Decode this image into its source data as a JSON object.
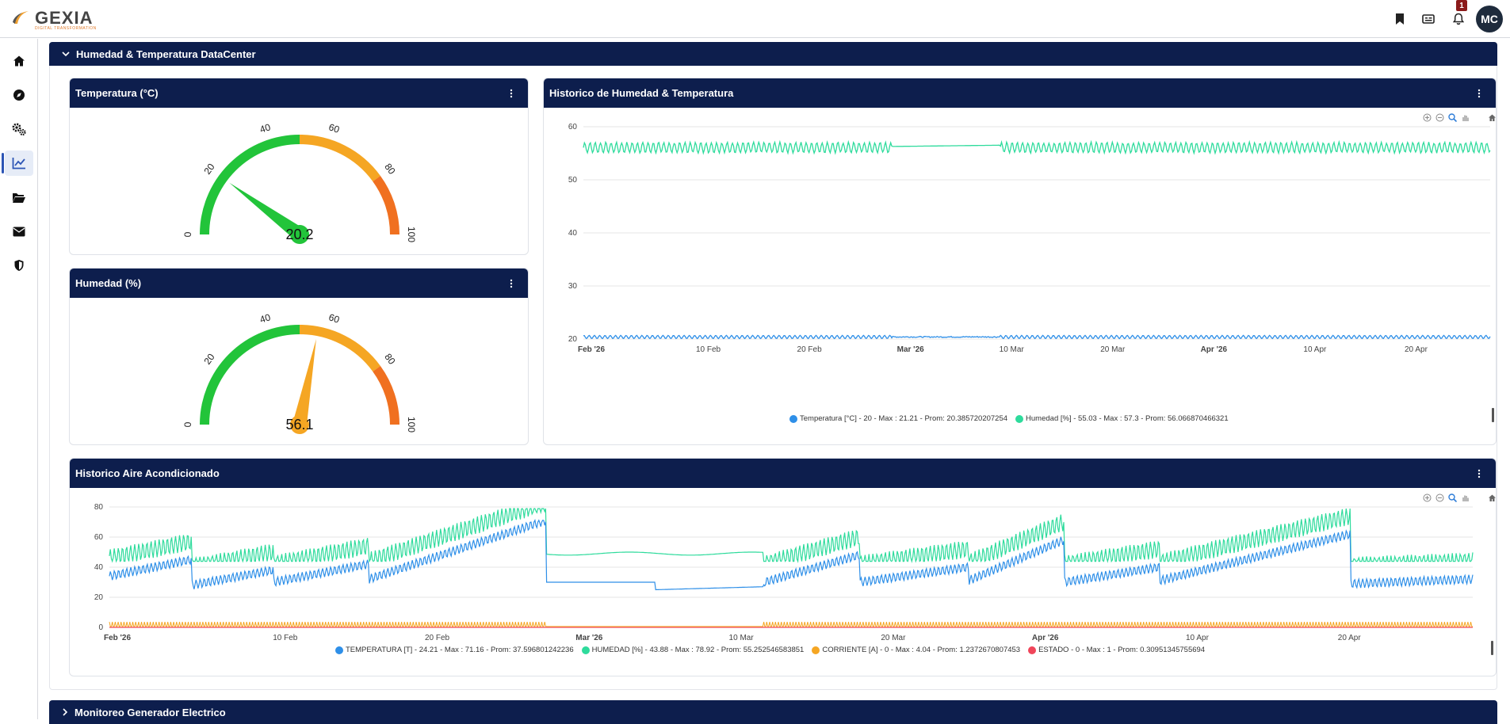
{
  "app": {
    "logo_text": "GEXIA",
    "logo_sub": "DIGITAL TRANSFORMATION",
    "notification_count": "1",
    "avatar_initials": "MC"
  },
  "sidebar": {
    "items": [
      {
        "icon": "home-icon"
      },
      {
        "icon": "compass-icon"
      },
      {
        "icon": "gears-icon"
      },
      {
        "icon": "chart-line-icon",
        "active": true
      },
      {
        "icon": "folder-open-icon"
      },
      {
        "icon": "envelope-icon"
      },
      {
        "icon": "shield-icon"
      }
    ]
  },
  "sections": {
    "datacenter_title": "Humedad & Temperatura DataCenter",
    "generator_title": "Monitoreo Generador Electrico"
  },
  "gauge_temp": {
    "title": "Temperatura (°C)",
    "value": 20.2,
    "value_label": "20.2",
    "min": 0,
    "max": 100,
    "ticks": [
      "0",
      "20",
      "40",
      "60",
      "80",
      "100"
    ],
    "needle_color": "#22c43a"
  },
  "gauge_hum": {
    "title": "Humedad (%)",
    "value": 56.1,
    "value_label": "56.1",
    "min": 0,
    "max": 100,
    "ticks": [
      "0",
      "20",
      "40",
      "60",
      "80",
      "100"
    ],
    "needle_color": "#f5a623"
  },
  "colors": {
    "header_navy": "#0d1e4d",
    "gauge_green": "#22c43a",
    "gauge_orange": "#f5a623",
    "gauge_red_orange": "#f07020",
    "series_blue": "#2e8fe8",
    "series_teal": "#2edb9c",
    "series_orange": "#f5a623",
    "series_red": "#f0455a"
  },
  "chart_data": [
    {
      "type": "line",
      "title": "Historico de Humedad & Temperatura",
      "ylim": [
        20,
        60
      ],
      "y_ticks": [
        "60",
        "50",
        "40",
        "30",
        "20"
      ],
      "x_tick_labels": [
        "Feb '26",
        "10 Feb",
        "20 Feb",
        "Mar '26",
        "10 Mar",
        "20 Mar",
        "Apr '26",
        "10 Apr",
        "20 Apr"
      ],
      "x_tick_bold": [
        true,
        false,
        false,
        true,
        false,
        false,
        true,
        false,
        false
      ],
      "grid": true,
      "legend_position": "bottom",
      "series": [
        {
          "name": "Temperatura [°C]",
          "color": "#2e8fe8",
          "min": 20,
          "max": 21.21,
          "mean": 20.385720207254
        },
        {
          "name": "Humedad [%]",
          "color": "#2edb9c",
          "min": 55.03,
          "max": 57.3,
          "mean": 56.066870466321
        }
      ],
      "legend": [
        {
          "text": "Temperatura [°C] - 20 - Max : 21.21 - Prom: 20.385720207254",
          "color": "#2e8fe8"
        },
        {
          "text": "Humedad [%] - 55.03 - Max : 57.3 - Prom: 56.066870466321",
          "color": "#2edb9c"
        }
      ]
    },
    {
      "type": "line",
      "title": "Historico Aire Acondicionado",
      "ylim": [
        0,
        80
      ],
      "y_ticks": [
        "80",
        "60",
        "40",
        "20",
        "0"
      ],
      "x_tick_labels": [
        "Feb '26",
        "10 Feb",
        "20 Feb",
        "Mar '26",
        "10 Mar",
        "20 Mar",
        "Apr '26",
        "10 Apr",
        "20 Apr"
      ],
      "x_tick_bold": [
        true,
        false,
        false,
        true,
        false,
        false,
        true,
        false,
        false
      ],
      "grid": true,
      "legend_position": "bottom",
      "series": [
        {
          "name": "TEMPERATURA [T]",
          "color": "#2e8fe8",
          "min": 24.21,
          "max": 71.16,
          "mean": 37.596801242236
        },
        {
          "name": "HUMEDAD [%]",
          "color": "#2edb9c",
          "min": 43.88,
          "max": 78.92,
          "mean": 55.252546583851
        },
        {
          "name": "CORRIENTE [A]",
          "color": "#f5a623",
          "min": 0,
          "max": 4.04,
          "mean": 1.2372670807453
        },
        {
          "name": "ESTADO",
          "color": "#f0455a",
          "min": 0,
          "max": 1,
          "mean": 0.30951345755694
        }
      ],
      "legend": [
        {
          "text": "TEMPERATURA [T] - 24.21 - Max : 71.16 - Prom: 37.596801242236",
          "color": "#2e8fe8"
        },
        {
          "text": "HUMEDAD [%] - 43.88 - Max : 78.92 - Prom: 55.252546583851",
          "color": "#2edb9c"
        },
        {
          "text": "CORRIENTE [A] - 0 - Max : 4.04 - Prom: 1.2372670807453",
          "color": "#f5a623"
        },
        {
          "text": "ESTADO - 0 - Max : 1 - Prom: 0.30951345755694",
          "color": "#f0455a"
        }
      ]
    }
  ]
}
